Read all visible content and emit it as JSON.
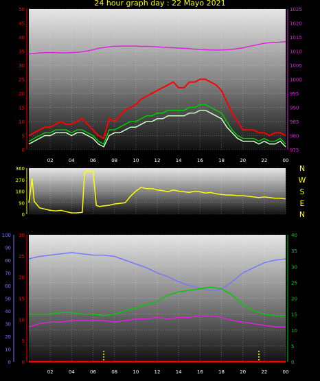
{
  "title": "24 hour graph day : 22 Mayo 2021",
  "colors": {
    "wind_avg": "#00cc00",
    "wind_gust": "#ff0000",
    "wind_speed": "#ccffcc",
    "pressure": "#dd22dd",
    "direction": "#ffff00",
    "humidity": "#7777ff",
    "temp": "#00cc00",
    "dewpoint": "#dd22dd",
    "rain": "#ff0000",
    "rain_marker": "#ffff00"
  },
  "x_ticks": [
    "02",
    "04",
    "06",
    "08",
    "10",
    "12",
    "14",
    "16",
    "18",
    "20",
    "22",
    "00"
  ],
  "direction_labels": [
    "N",
    "W",
    "S",
    "E",
    "N"
  ],
  "chart_data": [
    {
      "type": "line",
      "name": "wind",
      "x_hours": [
        0,
        0.5,
        1,
        1.5,
        2,
        2.5,
        3,
        3.5,
        4,
        4.5,
        5,
        5.5,
        6,
        6.5,
        7,
        7.5,
        8,
        8.5,
        9,
        9.5,
        10,
        10.5,
        11,
        11.5,
        12,
        12.5,
        13,
        13.5,
        14,
        14.5,
        15,
        15.5,
        16,
        16.5,
        17,
        17.5,
        18,
        18.5,
        19,
        19.5,
        20,
        20.5,
        21,
        21.5,
        22,
        22.5,
        23,
        23.5,
        24
      ],
      "y_left_ticks": [
        0,
        5,
        10,
        15,
        20,
        25,
        30,
        35,
        40,
        45,
        50
      ],
      "y_left_range": [
        0,
        50
      ],
      "y_right_ticks": [
        975,
        980,
        985,
        990,
        995,
        1000,
        1005,
        1010,
        1015,
        1020,
        1025
      ],
      "y_right_range": [
        975,
        1025
      ],
      "series": [
        {
          "color_key": "wind_gust",
          "axis": "left",
          "values": [
            5,
            6,
            7,
            8,
            8,
            9,
            10,
            9,
            9,
            10,
            11,
            9,
            7,
            5,
            4,
            11,
            10,
            12,
            14,
            15,
            16,
            18,
            19,
            20,
            21,
            22,
            23,
            24,
            22,
            22,
            24,
            24,
            25,
            25,
            24,
            23,
            21,
            17,
            13,
            10,
            7,
            7,
            7,
            6,
            6,
            5,
            6,
            6,
            5
          ]
        },
        {
          "color_key": "wind_avg",
          "axis": "left",
          "values": [
            3,
            4,
            5,
            6,
            6,
            7,
            7,
            7,
            6,
            7,
            7,
            6,
            5,
            3,
            2,
            7,
            7,
            8,
            9,
            10,
            10,
            11,
            12,
            12,
            13,
            13,
            14,
            14,
            14,
            14,
            15,
            15,
            16,
            16,
            15,
            14,
            13,
            10,
            7,
            5,
            4,
            4,
            4,
            3,
            4,
            3,
            3,
            4,
            2
          ]
        },
        {
          "color_key": "wind_speed",
          "axis": "left",
          "values": [
            2,
            3,
            4,
            5,
            5,
            6,
            6,
            6,
            5,
            6,
            6,
            5,
            4,
            2,
            1,
            5,
            6,
            6,
            7,
            8,
            8,
            9,
            10,
            10,
            11,
            11,
            12,
            12,
            12,
            12,
            13,
            13,
            14,
            14,
            13,
            12,
            11,
            8,
            6,
            4,
            3,
            3,
            3,
            2,
            3,
            2,
            2,
            3,
            1
          ]
        },
        {
          "color_key": "pressure",
          "axis": "right",
          "values": [
            1009,
            1009.2,
            1009.4,
            1009.5,
            1009.5,
            1009.5,
            1009.4,
            1009.4,
            1009.5,
            1009.6,
            1009.8,
            1010.1,
            1010.5,
            1011,
            1011.3,
            1011.5,
            1011.7,
            1011.8,
            1011.8,
            1011.8,
            1011.8,
            1011.7,
            1011.7,
            1011.6,
            1011.5,
            1011.4,
            1011.3,
            1011.2,
            1011.1,
            1011,
            1010.9,
            1010.7,
            1010.6,
            1010.5,
            1010.4,
            1010.4,
            1010.4,
            1010.5,
            1010.6,
            1010.9,
            1011.2,
            1011.6,
            1012,
            1012.4,
            1012.8,
            1013,
            1013.1,
            1013.2,
            1013.4
          ]
        }
      ]
    },
    {
      "type": "line",
      "name": "wind_direction",
      "x_hours": [
        0,
        0.3,
        0.5,
        0.8,
        1,
        1.5,
        2,
        2.5,
        3,
        3.5,
        4,
        4.5,
        5,
        5.2,
        5.4,
        5.8,
        6,
        6.3,
        6.6,
        7,
        7.5,
        8,
        8.5,
        9,
        9.5,
        10,
        10.5,
        11,
        11.5,
        12,
        12.5,
        13,
        13.5,
        14,
        14.5,
        15,
        15.5,
        16,
        16.5,
        17,
        17.5,
        18,
        18.5,
        19,
        19.5,
        20,
        20.5,
        21,
        21.5,
        22,
        22.5,
        23,
        23.5,
        24
      ],
      "y_ticks": [
        0,
        90,
        180,
        270,
        360
      ],
      "y_range": [
        0,
        360
      ],
      "series": [
        {
          "color_key": "direction",
          "values": [
            90,
            280,
            100,
            70,
            50,
            40,
            30,
            25,
            30,
            20,
            10,
            10,
            15,
            320,
            340,
            330,
            340,
            70,
            60,
            65,
            70,
            80,
            85,
            90,
            140,
            180,
            210,
            200,
            200,
            190,
            185,
            175,
            190,
            180,
            175,
            170,
            180,
            175,
            165,
            170,
            160,
            155,
            150,
            150,
            145,
            145,
            140,
            135,
            130,
            135,
            130,
            125,
            125,
            120
          ]
        }
      ]
    },
    {
      "type": "line",
      "name": "temp_hum",
      "x_hours": [
        0,
        1,
        2,
        3,
        4,
        5,
        6,
        7,
        8,
        9,
        10,
        11,
        12,
        13,
        14,
        15,
        16,
        17,
        18,
        19,
        20,
        21,
        22,
        23,
        24
      ],
      "y_left_ticks": [
        0,
        10,
        20,
        30,
        40,
        50,
        60,
        70,
        80,
        90,
        100
      ],
      "y_left_range": [
        0,
        100
      ],
      "y_mid_ticks": [
        0,
        5,
        10,
        15,
        20,
        25,
        30
      ],
      "y_mid_range": [
        0,
        30
      ],
      "y_right_ticks": [
        0,
        5,
        10,
        15,
        20,
        25,
        30,
        35,
        40
      ],
      "y_right_range": [
        0,
        40
      ],
      "series": [
        {
          "color_key": "humidity",
          "axis": "left",
          "values": [
            81,
            83,
            84,
            85,
            86,
            85,
            84,
            84,
            83,
            80,
            77,
            74,
            70,
            67,
            63,
            60,
            58,
            56,
            57,
            63,
            70,
            74,
            78,
            80,
            81
          ]
        },
        {
          "color_key": "temp",
          "axis": "right",
          "values": [
            15,
            15,
            15,
            15.5,
            15.5,
            15,
            15,
            14.5,
            15,
            16,
            17,
            18,
            19,
            21,
            22,
            22.5,
            23,
            23.5,
            23,
            21,
            18,
            16,
            15,
            14.5,
            14.5
          ]
        },
        {
          "color_key": "dewpoint",
          "axis": "right",
          "values": [
            11,
            12,
            12.5,
            12.5,
            13,
            13,
            13,
            13,
            12.5,
            13,
            13.5,
            13.5,
            14,
            13.5,
            14,
            14,
            14.5,
            14.5,
            14,
            13,
            12.5,
            12,
            11.5,
            11,
            11
          ]
        },
        {
          "color_key": "rain",
          "axis": "right",
          "values": [
            0,
            0,
            0,
            0,
            0,
            0,
            0,
            0,
            0,
            0,
            0,
            0,
            0,
            0,
            0,
            0,
            0,
            0,
            0,
            0,
            0,
            0,
            0,
            0,
            0
          ]
        }
      ]
    }
  ]
}
